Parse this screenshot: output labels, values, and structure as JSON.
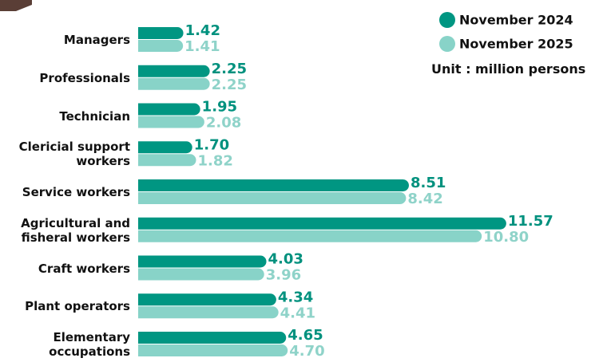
{
  "chart_data": {
    "type": "bar",
    "orientation": "horizontal",
    "categories": [
      "Managers",
      "Professionals",
      "Technician",
      "Clericial support\nworkers",
      "Service workers",
      "Agricultural and\nfisheral workers",
      "Craft workers",
      "Plant operators",
      "Elementary\noccupations"
    ],
    "series": [
      {
        "name": "November 2024",
        "color": "#009682",
        "label_color": "#00917e",
        "values": [
          1.42,
          2.25,
          1.95,
          1.7,
          8.51,
          11.57,
          4.03,
          4.34,
          4.65
        ],
        "value_labels": [
          "1.42",
          "2.25",
          "1.95",
          "1.70",
          "8.51",
          "11.57",
          "4.03",
          "4.34",
          "4.65"
        ]
      },
      {
        "name": "November 2025",
        "color": "#88d3c8",
        "label_color": "#8fd3c9",
        "values": [
          1.41,
          2.25,
          2.08,
          1.82,
          8.42,
          10.8,
          3.96,
          4.41,
          4.7
        ],
        "value_labels": [
          "1.41",
          "2.25",
          "2.08",
          "1.82",
          "8.42",
          "10.80",
          "3.96",
          "4.41",
          "4.70"
        ]
      }
    ],
    "xlim": [
      0,
      12
    ],
    "unit_note": "Unit : million persons"
  }
}
